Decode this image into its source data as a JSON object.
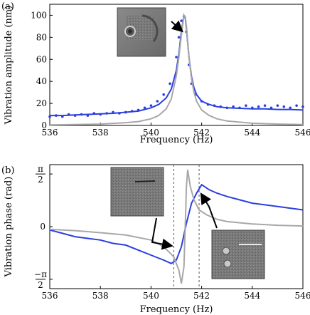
{
  "chart_data": [
    {
      "panel_label": "(a)",
      "type": "line",
      "xlabel": "Frequency (Hz)",
      "ylabel": "Vibration amplitude (nm)",
      "xlim": [
        536,
        546
      ],
      "ylim": [
        0,
        110
      ],
      "x_ticks": [
        536,
        538,
        540,
        542,
        544,
        546
      ],
      "y_ticks": [
        0,
        20,
        40,
        60,
        80,
        100
      ],
      "grid": false,
      "colors": {
        "measured": "#2b3fe0",
        "model": "#a8a8a8"
      },
      "series": [
        {
          "style": "points",
          "color": "#2b3fe0",
          "x": [
            536.0,
            536.25,
            536.5,
            536.75,
            537.0,
            537.25,
            537.5,
            537.75,
            538.0,
            538.25,
            538.5,
            538.75,
            539.0,
            539.25,
            539.5,
            539.75,
            540.0,
            540.25,
            540.5,
            540.75,
            541.0,
            541.1,
            541.2,
            541.3,
            541.4,
            541.5,
            541.6,
            541.75,
            542.0,
            542.25,
            542.5,
            542.75,
            543.0,
            543.25,
            543.5,
            543.75,
            544.0,
            544.25,
            544.5,
            544.75,
            545.0,
            545.25,
            545.5,
            545.75,
            546.0
          ],
          "y": [
            8,
            9,
            8,
            10,
            9,
            10,
            9,
            11,
            10,
            11,
            12,
            11,
            12,
            13,
            14,
            16,
            18,
            22,
            28,
            38,
            62,
            80,
            95,
            99,
            85,
            55,
            38,
            28,
            22,
            19,
            18,
            17,
            16,
            17,
            16,
            18,
            16,
            17,
            18,
            16,
            18,
            17,
            16,
            18,
            17
          ]
        },
        {
          "style": "line",
          "color": "#2b3fe0",
          "x": [
            536.0,
            536.5,
            537.0,
            537.5,
            538.0,
            538.5,
            539.0,
            539.5,
            540.0,
            540.3,
            540.6,
            540.8,
            541.0,
            541.1,
            541.2,
            541.3,
            541.35,
            541.4,
            541.5,
            541.6,
            541.7,
            541.8,
            542.0,
            542.3,
            542.6,
            543.0,
            543.5,
            544.0,
            544.5,
            545.0,
            545.5,
            546.0
          ],
          "y": [
            9,
            9,
            9.5,
            10,
            10.5,
            11,
            12,
            13,
            16,
            19,
            25,
            33,
            50,
            65,
            85,
            100,
            98,
            88,
            62,
            44,
            34,
            28,
            22,
            19,
            17,
            16,
            15.5,
            15,
            15,
            14.5,
            14.5,
            14
          ]
        },
        {
          "style": "line",
          "color": "#a8a8a8",
          "x": [
            536.0,
            537.0,
            538.0,
            539.0,
            539.5,
            540.0,
            540.3,
            540.6,
            540.8,
            541.0,
            541.1,
            541.2,
            541.3,
            541.35,
            541.4,
            541.5,
            541.6,
            541.7,
            541.8,
            542.0,
            542.3,
            542.6,
            543.0,
            543.5,
            544.0,
            545.0,
            546.0
          ],
          "y": [
            0.5,
            0.8,
            1.2,
            2.5,
            3.5,
            6,
            9,
            15,
            24,
            45,
            62,
            82,
            100,
            99,
            90,
            62,
            42,
            30,
            22,
            14,
            9,
            6,
            4,
            3,
            2,
            1.2,
            0.8
          ]
        }
      ]
    },
    {
      "panel_label": "(b)",
      "type": "line",
      "xlabel": "Frequency (Hz)",
      "ylabel": "Vibration phase (rad)",
      "xlim": [
        536,
        546
      ],
      "ylim": [
        -1.85,
        1.85
      ],
      "x_ticks": [
        536,
        538,
        540,
        542,
        544,
        546
      ],
      "y_tick_labels": [
        {
          "value": 1.5708,
          "num": "π",
          "den": "2",
          "sign": ""
        },
        {
          "value": 0,
          "text": "0"
        },
        {
          "value": -1.5708,
          "num": "−π",
          "den": "2",
          "sign": "−"
        }
      ],
      "vlines": [
        540.9,
        541.9
      ],
      "grid": false,
      "series": [
        {
          "style": "line",
          "color": "#2b3fe0",
          "x": [
            536.0,
            536.5,
            537.0,
            537.5,
            538.0,
            538.5,
            539.0,
            539.5,
            540.0,
            540.5,
            540.8,
            541.0,
            541.2,
            541.4,
            541.6,
            541.8,
            542.0,
            542.3,
            542.6,
            543.0,
            543.5,
            544.0,
            544.5,
            545.0,
            545.5,
            546.0
          ],
          "y": [
            -0.1,
            -0.2,
            -0.3,
            -0.35,
            -0.4,
            -0.5,
            -0.55,
            -0.7,
            -0.85,
            -1.0,
            -1.1,
            -1.0,
            -0.6,
            0.1,
            0.7,
            1.0,
            1.25,
            1.1,
            1.0,
            0.9,
            0.8,
            0.7,
            0.65,
            0.6,
            0.55,
            0.5
          ]
        },
        {
          "style": "line",
          "color": "#a8a8a8",
          "x": [
            536.0,
            537.0,
            538.0,
            539.0,
            540.0,
            540.5,
            540.9,
            541.1,
            541.2,
            541.3,
            541.35,
            541.4,
            541.45,
            541.55,
            541.7,
            541.9,
            542.2,
            542.6,
            543.0,
            544.0,
            545.0,
            546.0
          ],
          "y": [
            -0.08,
            -0.12,
            -0.18,
            -0.25,
            -0.4,
            -0.6,
            -0.9,
            -1.3,
            -1.7,
            -1.2,
            0.0,
            1.2,
            1.7,
            1.2,
            0.8,
            0.5,
            0.35,
            0.22,
            0.15,
            0.08,
            0.04,
            0.02
          ]
        }
      ]
    }
  ]
}
